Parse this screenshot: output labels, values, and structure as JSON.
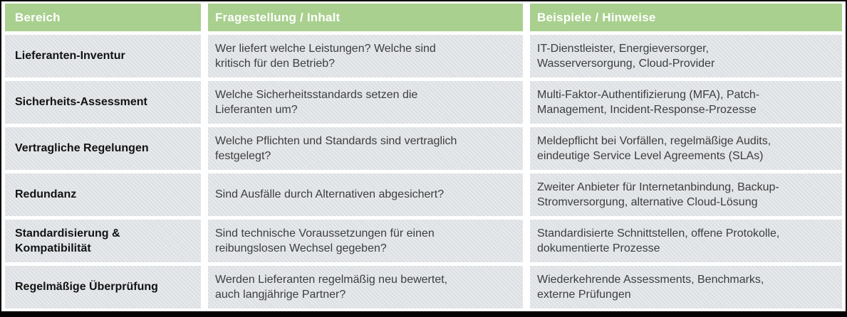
{
  "colors": {
    "header_bg": "#a9d08e",
    "header_text": "#ffffff",
    "row_bg": "#dee1e4",
    "row_text": "#3d3d3d",
    "bereich_text": "#121212",
    "border": "#000000",
    "gap": "#ffffff"
  },
  "table": {
    "columns": [
      "Bereich",
      "Fragestellung / Inhalt",
      "Beispiele / Hinweise"
    ],
    "rows": [
      {
        "bereich": "Lieferanten-Inventur",
        "frage": "Wer liefert welche Leistungen? Welche sind\nkritisch für den Betrieb?",
        "beispiele": "IT-Dienstleister, Energieversorger,\nWasserversorgung, Cloud-Provider"
      },
      {
        "bereich": "Sicherheits-Assessment",
        "frage": "Welche Sicherheitsstandards setzen die\nLieferanten um?",
        "beispiele": "Multi-Faktor-Authentifizierung (MFA), Patch-\nManagement, Incident-Response-Prozesse"
      },
      {
        "bereich": "Vertragliche Regelungen",
        "frage": "Welche Pflichten und Standards sind vertraglich\nfestgelegt?",
        "beispiele": "Meldepflicht bei Vorfällen, regelmäßige Audits,\neindeutige Service Level Agreements (SLAs)"
      },
      {
        "bereich": "Redundanz",
        "frage": "Sind Ausfälle durch Alternativen abgesichert?",
        "beispiele": "Zweiter Anbieter für Internetanbindung, Backup-\nStromversorgung, alternative Cloud-Lösung"
      },
      {
        "bereich": "Standardisierung  &\nKompatibilität",
        "frage": "Sind technische Voraussetzungen für einen\nreibungslosen Wechsel gegeben?",
        "beispiele": "Standardisierte Schnittstellen, offene Protokolle,\ndokumentierte Prozesse"
      },
      {
        "bereich": "Regelmäßige Überprüfung",
        "frage": "Werden Lieferanten regelmäßig neu bewertet,\nauch langjährige Partner?",
        "beispiele": "Wiederkehrende Assessments, Benchmarks,\nexterne Prüfungen"
      }
    ]
  }
}
